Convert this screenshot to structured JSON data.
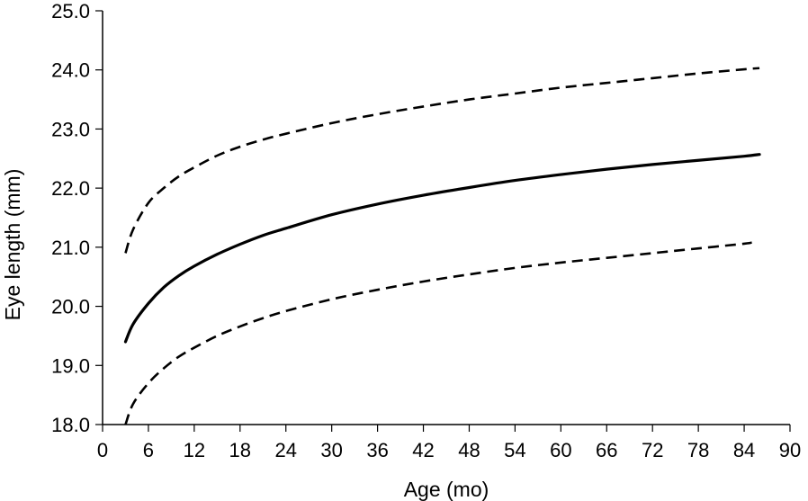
{
  "chart_data": {
    "type": "line",
    "xlabel": "Age (mo)",
    "ylabel": "Eye length (mm)",
    "xlim": [
      0,
      90
    ],
    "ylim": [
      18.0,
      25.0
    ],
    "xticks": [
      "0",
      "6",
      "12",
      "18",
      "24",
      "30",
      "36",
      "42",
      "48",
      "54",
      "60",
      "66",
      "72",
      "78",
      "84",
      "90"
    ],
    "yticks": [
      "18.0",
      "19.0",
      "20.0",
      "21.0",
      "22.0",
      "23.0",
      "24.0",
      "25.0"
    ],
    "grid": false,
    "series": [
      {
        "style": "dashed",
        "x": [
          3,
          4,
          6,
          8,
          10,
          12,
          15,
          18,
          21,
          24,
          30,
          36,
          42,
          48,
          54,
          60,
          66,
          72,
          78,
          84,
          86
        ],
        "y": [
          20.9,
          21.3,
          21.75,
          22.0,
          22.2,
          22.35,
          22.55,
          22.7,
          22.82,
          22.92,
          23.1,
          23.25,
          23.38,
          23.5,
          23.6,
          23.7,
          23.78,
          23.86,
          23.94,
          24.01,
          24.03
        ]
      },
      {
        "style": "solid",
        "x": [
          3,
          4,
          6,
          8,
          10,
          12,
          15,
          18,
          21,
          24,
          30,
          36,
          42,
          48,
          54,
          60,
          66,
          72,
          78,
          84,
          86
        ],
        "y": [
          19.4,
          19.7,
          20.05,
          20.32,
          20.52,
          20.68,
          20.88,
          21.05,
          21.2,
          21.32,
          21.55,
          21.73,
          21.88,
          22.01,
          22.13,
          22.23,
          22.32,
          22.4,
          22.47,
          22.54,
          22.57
        ]
      },
      {
        "style": "dashed",
        "x": [
          3,
          4,
          6,
          8,
          10,
          12,
          15,
          18,
          21,
          24,
          30,
          36,
          42,
          48,
          54,
          60,
          66,
          72,
          78,
          84,
          85
        ],
        "y": [
          18.0,
          18.35,
          18.7,
          18.95,
          19.15,
          19.3,
          19.5,
          19.66,
          19.8,
          19.92,
          20.12,
          20.28,
          20.42,
          20.54,
          20.65,
          20.74,
          20.82,
          20.9,
          20.98,
          21.06,
          21.08
        ]
      }
    ]
  }
}
